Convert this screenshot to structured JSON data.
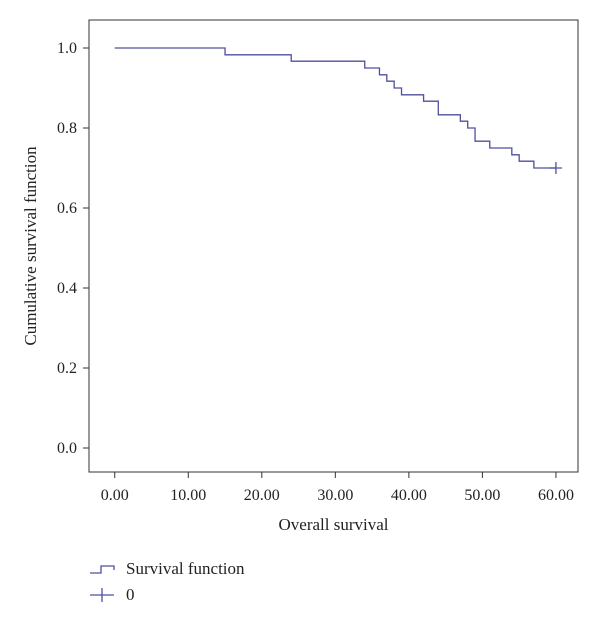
{
  "chart_data": {
    "type": "line",
    "xlabel": "Overall survival",
    "ylabel": "Cumulative survival function",
    "xlim": [
      -3.5,
      63
    ],
    "ylim": [
      -0.06,
      1.07
    ],
    "x_ticks": [
      0,
      10,
      20,
      30,
      40,
      50,
      60
    ],
    "x_tick_labels": [
      "0.00",
      "10.00",
      "20.00",
      "30.00",
      "40.00",
      "50.00",
      "60.00"
    ],
    "y_ticks": [
      0.0,
      0.2,
      0.4,
      0.6,
      0.8,
      1.0
    ],
    "y_tick_labels": [
      "0.0",
      "0.2",
      "0.4",
      "0.6",
      "0.8",
      "1.0"
    ],
    "grid": false,
    "legend_position": "bottom-left",
    "series": [
      {
        "name": "Survival function",
        "step": true,
        "color": "#4f4fa0",
        "x": [
          0,
          15,
          24,
          34,
          36,
          37,
          38,
          39,
          42,
          44,
          47,
          48,
          49,
          51,
          54,
          55,
          57,
          60
        ],
        "y": [
          1.0,
          0.983,
          0.967,
          0.95,
          0.933,
          0.917,
          0.9,
          0.883,
          0.867,
          0.833,
          0.817,
          0.8,
          0.767,
          0.75,
          0.733,
          0.717,
          0.7,
          0.7
        ]
      },
      {
        "name": "0",
        "marker": "plus",
        "color": "#4f4fa0",
        "x": [
          60
        ],
        "y": [
          0.7
        ]
      }
    ]
  }
}
